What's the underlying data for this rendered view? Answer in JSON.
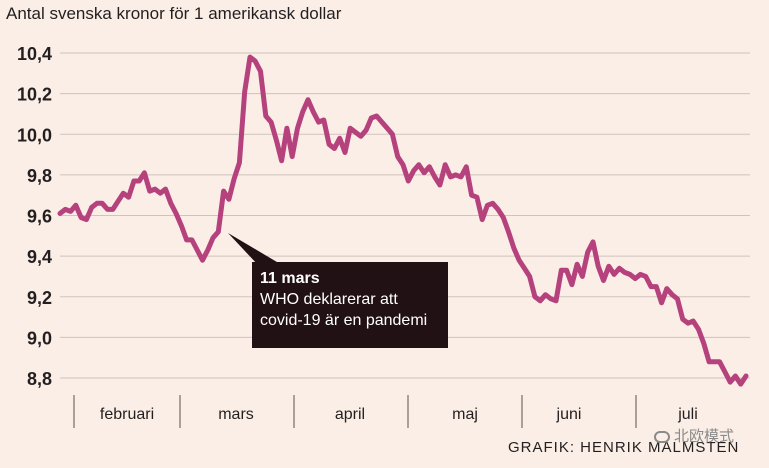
{
  "title": "Antal svenska kronor för 1 amerikansk dollar",
  "annotation": {
    "title": "11 mars",
    "line1": "WHO deklarerar att",
    "line2": "covid-19 är en pandemi"
  },
  "credit": "GRAFIK: HENRIK MALMSTEN",
  "watermark": "北欧模式",
  "colors": {
    "background": "#fbeee6",
    "line": "#b5427d",
    "callout": "#221114",
    "grid": "#cfc3bc"
  },
  "chart_data": {
    "type": "line",
    "title": "Antal svenska kronor för 1 amerikansk dollar",
    "xlabel": "",
    "ylabel": "",
    "ylim": [
      8.73,
      10.48
    ],
    "yticks": [
      "10,4",
      "10,2",
      "10,0",
      "9,8",
      "9,6",
      "9,4",
      "9,2",
      "9,0",
      "8,8"
    ],
    "ytick_values": [
      10.4,
      10.2,
      10.0,
      9.8,
      9.6,
      9.4,
      9.2,
      9.0,
      8.8
    ],
    "months": [
      "februari",
      "mars",
      "april",
      "maj",
      "juni",
      "juli"
    ],
    "grid": true,
    "series": [
      {
        "values": [
          9.61,
          9.63,
          9.62,
          9.65,
          9.59,
          9.58,
          9.64,
          9.66,
          9.66,
          9.63,
          9.63,
          9.67,
          9.71,
          9.69,
          9.77,
          9.77,
          9.81,
          9.72,
          9.73,
          9.71,
          9.73,
          9.66,
          9.61,
          9.55,
          9.48,
          9.48,
          9.43,
          9.38,
          9.43,
          9.49,
          9.52,
          9.72,
          9.68,
          9.78,
          9.86,
          10.21,
          10.38,
          10.36,
          10.31,
          10.09,
          10.06,
          9.97,
          9.87,
          10.03,
          9.89,
          10.03,
          10.11,
          10.17,
          10.11,
          10.06,
          10.07,
          9.95,
          9.93,
          9.98,
          9.91,
          10.03,
          10.01,
          9.99,
          10.02,
          10.08,
          10.09,
          10.06,
          10.03,
          10.0,
          9.89,
          9.85,
          9.77,
          9.82,
          9.85,
          9.81,
          9.84,
          9.79,
          9.75,
          9.85,
          9.79,
          9.8,
          9.79,
          9.84,
          9.7,
          9.69,
          9.58,
          9.65,
          9.66,
          9.63,
          9.59,
          9.52,
          9.44,
          9.38,
          9.34,
          9.3,
          9.2,
          9.18,
          9.21,
          9.19,
          9.18,
          9.33,
          9.33,
          9.26,
          9.36,
          9.3,
          9.42,
          9.47,
          9.35,
          9.28,
          9.35,
          9.31,
          9.34,
          9.32,
          9.31,
          9.29,
          9.31,
          9.3,
          9.25,
          9.25,
          9.17,
          9.24,
          9.21,
          9.19,
          9.09,
          9.07,
          9.08,
          9.04,
          8.97,
          8.88,
          8.88,
          8.88,
          8.83,
          8.78,
          8.81,
          8.77,
          8.81
        ]
      }
    ]
  }
}
